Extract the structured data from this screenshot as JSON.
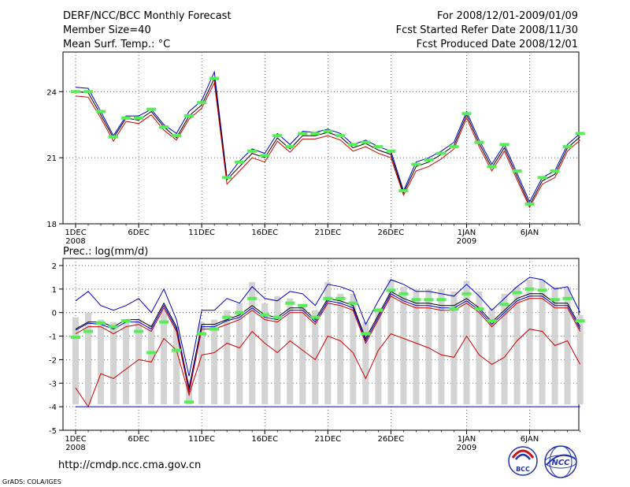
{
  "header": {
    "title": "DERF/NCC/BCC Monthly Forecast",
    "member_size": "Member Size=40",
    "variable": "Mean Surf. Temp.: °C",
    "period": "For 2008/12/01-2009/01/09",
    "fcst_started": "Fcst Started Refer Date 2008/11/30",
    "fcst_produced": "Fcst Produced Date 2008/12/01"
  },
  "footer": {
    "url": "http://cmdp.ncc.cma.gov.cn",
    "grads_credit": "GrADS: COLA/IGES",
    "logo_bcc": "BCC",
    "logo_ncc": "NCC"
  },
  "colors": {
    "ensemble_max": "#0000cc",
    "ensemble_mean": "#000000",
    "ensemble_min": "#cc0000",
    "member_marker": "#55ee55",
    "spread_bar": "#d3d3d3"
  },
  "chart_data": [
    {
      "type": "line",
      "title": "Mean Surf. Temp.: °C",
      "x_ticks": [
        {
          "day": 0,
          "label": "1DEC",
          "sub": "2008"
        },
        {
          "day": 5,
          "label": "6DEC",
          "sub": ""
        },
        {
          "day": 10,
          "label": "11DEC",
          "sub": ""
        },
        {
          "day": 15,
          "label": "16DEC",
          "sub": ""
        },
        {
          "day": 20,
          "label": "21DEC",
          "sub": ""
        },
        {
          "day": 25,
          "label": "26DEC",
          "sub": ""
        },
        {
          "day": 31,
          "label": "1JAN",
          "sub": "2009"
        },
        {
          "day": 36,
          "label": "6JAN",
          "sub": ""
        }
      ],
      "xlim": [
        -1,
        39.9
      ],
      "ylim": [
        18,
        25.8
      ],
      "y_ticks": [
        18,
        21,
        24
      ],
      "series": [
        {
          "name": "max",
          "color_key": "ensemble_max",
          "values": [
            24.2,
            24.15,
            23.1,
            22.0,
            22.9,
            22.9,
            23.2,
            22.5,
            22.1,
            23.1,
            23.6,
            24.9,
            20.1,
            20.85,
            21.4,
            21.2,
            22.1,
            21.6,
            22.2,
            22.15,
            22.3,
            22.1,
            21.6,
            21.8,
            21.5,
            21.3,
            19.5,
            20.8,
            21.0,
            21.3,
            21.7,
            23.1,
            21.8,
            20.7,
            21.6,
            20.3,
            19.0,
            20.1,
            20.4,
            21.6,
            22.1
          ]
        },
        {
          "name": "mean",
          "color_key": "ensemble_mean",
          "values": [
            24.0,
            23.95,
            22.95,
            21.9,
            22.8,
            22.7,
            23.1,
            22.4,
            21.9,
            22.9,
            23.4,
            24.6,
            20.0,
            20.6,
            21.2,
            21.0,
            21.9,
            21.4,
            22.0,
            22.0,
            22.15,
            21.95,
            21.45,
            21.65,
            21.35,
            21.15,
            19.4,
            20.6,
            20.8,
            21.15,
            21.55,
            22.95,
            21.65,
            20.55,
            21.45,
            20.15,
            18.85,
            19.95,
            20.25,
            21.45,
            21.95
          ]
        },
        {
          "name": "min",
          "color_key": "ensemble_min",
          "values": [
            23.8,
            23.75,
            22.8,
            21.75,
            22.65,
            22.55,
            22.95,
            22.25,
            21.8,
            22.75,
            23.25,
            24.4,
            19.8,
            20.4,
            21.0,
            20.8,
            21.75,
            21.25,
            21.85,
            21.85,
            22.0,
            21.8,
            21.3,
            21.5,
            21.2,
            21.0,
            19.3,
            20.4,
            20.6,
            20.95,
            21.4,
            22.8,
            21.5,
            20.4,
            21.3,
            20.0,
            18.75,
            19.8,
            20.1,
            21.3,
            21.8
          ]
        }
      ],
      "markers": [
        24.0,
        24.0,
        23.1,
        21.95,
        22.8,
        22.8,
        23.2,
        22.4,
        22.0,
        22.9,
        23.5,
        24.6,
        20.1,
        20.8,
        21.3,
        21.1,
        22.0,
        21.5,
        22.1,
        22.1,
        22.2,
        22.0,
        21.6,
        21.7,
        21.5,
        21.3,
        19.5,
        20.7,
        20.9,
        21.2,
        21.5,
        23.0,
        21.7,
        20.6,
        21.6,
        20.4,
        18.9,
        20.1,
        20.4,
        21.5,
        22.1
      ]
    },
    {
      "type": "line",
      "title": "Prec.: log(mm/d)",
      "x_ticks": [
        {
          "day": 0,
          "label": "1DEC",
          "sub": "2008"
        },
        {
          "day": 5,
          "label": "6DEC",
          "sub": ""
        },
        {
          "day": 10,
          "label": "11DEC",
          "sub": ""
        },
        {
          "day": 15,
          "label": "16DEC",
          "sub": ""
        },
        {
          "day": 20,
          "label": "21DEC",
          "sub": ""
        },
        {
          "day": 25,
          "label": "26DEC",
          "sub": ""
        },
        {
          "day": 31,
          "label": "1JAN",
          "sub": "2009"
        },
        {
          "day": 36,
          "label": "6JAN",
          "sub": ""
        }
      ],
      "xlim": [
        -1,
        39.9
      ],
      "ylim": [
        -5,
        2.3
      ],
      "y_ticks": [
        -5,
        -4,
        -3,
        -2,
        -1,
        0,
        1,
        2
      ],
      "baseline": -4,
      "bars": [
        {
          "lo": -3.9,
          "hi": -0.2
        },
        {
          "lo": -3.9,
          "hi": 0.0
        },
        {
          "lo": -3.9,
          "hi": -0.3
        },
        {
          "lo": -3.9,
          "hi": -0.4
        },
        {
          "lo": -3.9,
          "hi": -0.4
        },
        {
          "lo": -3.9,
          "hi": -0.3
        },
        {
          "lo": -3.9,
          "hi": -0.5
        },
        {
          "lo": -3.9,
          "hi": 0.1
        },
        {
          "lo": -3.9,
          "hi": -0.6
        },
        {
          "lo": -3.9,
          "hi": -2.9
        },
        {
          "lo": -3.9,
          "hi": -0.4
        },
        {
          "lo": -3.9,
          "hi": -0.3
        },
        {
          "lo": -3.9,
          "hi": 0.1
        },
        {
          "lo": -3.9,
          "hi": 0.4
        },
        {
          "lo": -3.9,
          "hi": 1.3
        },
        {
          "lo": -3.9,
          "hi": 0.4
        },
        {
          "lo": -3.9,
          "hi": 0.7
        },
        {
          "lo": -3.9,
          "hi": 0.6
        },
        {
          "lo": -3.9,
          "hi": 0.3
        },
        {
          "lo": -3.9,
          "hi": 0.1
        },
        {
          "lo": -3.9,
          "hi": 1.3
        },
        {
          "lo": -3.9,
          "hi": 0.8
        },
        {
          "lo": -3.9,
          "hi": 0.8
        },
        {
          "lo": -3.9,
          "hi": -0.4
        },
        {
          "lo": -3.9,
          "hi": 0.2
        },
        {
          "lo": -3.9,
          "hi": 1.4
        },
        {
          "lo": -3.9,
          "hi": 1.1
        },
        {
          "lo": -3.9,
          "hi": 1.0
        },
        {
          "lo": -3.9,
          "hi": 1.0
        },
        {
          "lo": -3.9,
          "hi": 1.0
        },
        {
          "lo": -3.9,
          "hi": 0.9
        },
        {
          "lo": -3.9,
          "hi": 1.35
        },
        {
          "lo": -3.9,
          "hi": 0.9
        },
        {
          "lo": -3.9,
          "hi": 0.2
        },
        {
          "lo": -3.9,
          "hi": 0.8
        },
        {
          "lo": -3.9,
          "hi": 1.1
        },
        {
          "lo": -3.9,
          "hi": 1.4
        },
        {
          "lo": -3.9,
          "hi": 1.4
        },
        {
          "lo": -3.9,
          "hi": 1.1
        },
        {
          "lo": -3.9,
          "hi": 1.1
        },
        {
          "lo": -3.9,
          "hi": -0.1
        }
      ],
      "series": [
        {
          "name": "max",
          "color_key": "ensemble_max",
          "values": [
            0.5,
            0.9,
            0.3,
            0.1,
            0.3,
            0.6,
            0.0,
            1.0,
            -0.3,
            -2.7,
            0.1,
            0.1,
            0.6,
            0.4,
            1.1,
            0.6,
            0.5,
            0.9,
            0.8,
            0.3,
            1.2,
            1.1,
            0.9,
            -0.5,
            0.5,
            1.4,
            1.2,
            0.9,
            0.9,
            0.8,
            0.7,
            1.2,
            0.7,
            0.1,
            0.6,
            1.1,
            1.5,
            1.4,
            1.0,
            1.1,
            0.0
          ]
        },
        {
          "name": "upper",
          "color_key": "ensemble_mean",
          "values": [
            -0.7,
            -0.4,
            -0.4,
            -0.6,
            -0.3,
            -0.3,
            -0.6,
            0.4,
            -0.6,
            -3.2,
            -0.5,
            -0.5,
            -0.3,
            -0.1,
            0.3,
            -0.1,
            -0.2,
            0.2,
            0.2,
            -0.3,
            0.6,
            0.5,
            0.3,
            -1.1,
            -0.1,
            0.9,
            0.6,
            0.4,
            0.4,
            0.3,
            0.3,
            0.6,
            0.2,
            -0.4,
            0.1,
            0.6,
            0.8,
            0.8,
            0.4,
            0.4,
            -0.6
          ]
        },
        {
          "name": "mean",
          "color_key": "ensemble_max",
          "values": [
            -0.75,
            -0.45,
            -0.5,
            -0.7,
            -0.4,
            -0.4,
            -0.7,
            0.3,
            -0.7,
            -3.3,
            -0.6,
            -0.6,
            -0.35,
            -0.2,
            0.2,
            -0.2,
            -0.3,
            0.1,
            0.1,
            -0.4,
            0.5,
            0.4,
            0.2,
            -1.2,
            -0.2,
            0.8,
            0.5,
            0.3,
            0.3,
            0.2,
            0.2,
            0.5,
            0.1,
            -0.5,
            0.0,
            0.5,
            0.7,
            0.7,
            0.3,
            0.3,
            -0.7
          ]
        },
        {
          "name": "lower",
          "color_key": "ensemble_min",
          "values": [
            -0.9,
            -0.6,
            -0.6,
            -0.9,
            -0.6,
            -0.5,
            -0.8,
            0.2,
            -0.8,
            -3.4,
            -0.7,
            -0.7,
            -0.5,
            -0.3,
            0.1,
            -0.3,
            -0.4,
            0.0,
            0.0,
            -0.5,
            0.4,
            0.3,
            0.1,
            -1.3,
            -0.3,
            0.7,
            0.4,
            0.2,
            0.2,
            0.1,
            0.1,
            0.4,
            0.0,
            -0.6,
            -0.1,
            0.4,
            0.6,
            0.6,
            0.2,
            0.2,
            -0.8
          ]
        },
        {
          "name": "min",
          "color_key": "ensemble_min",
          "values": [
            -3.2,
            -4.0,
            -2.6,
            -2.8,
            -2.4,
            -2.0,
            -2.1,
            -1.1,
            -1.6,
            -3.5,
            -1.8,
            -1.7,
            -1.3,
            -1.5,
            -0.8,
            -1.3,
            -1.7,
            -1.2,
            -1.6,
            -2.0,
            -1.0,
            -1.2,
            -1.7,
            -2.8,
            -1.6,
            -0.9,
            -1.1,
            -1.3,
            -1.5,
            -1.8,
            -1.9,
            -1.0,
            -1.8,
            -2.2,
            -1.9,
            -1.2,
            -0.7,
            -0.8,
            -1.4,
            -1.2,
            -2.2
          ]
        }
      ],
      "markers": [
        -1.05,
        -0.8,
        -0.45,
        -0.6,
        -0.35,
        -0.8,
        -1.7,
        -0.4,
        -1.6,
        -3.8,
        -0.9,
        -0.7,
        -0.2,
        0.0,
        0.6,
        -0.1,
        -0.2,
        0.4,
        0.3,
        -0.2,
        0.6,
        0.6,
        0.4,
        -0.9,
        0.1,
        0.95,
        0.8,
        0.55,
        0.55,
        0.55,
        0.15,
        0.8,
        0.15,
        -0.35,
        0.35,
        0.85,
        1.0,
        0.95,
        0.55,
        0.6,
        -0.35
      ]
    }
  ]
}
